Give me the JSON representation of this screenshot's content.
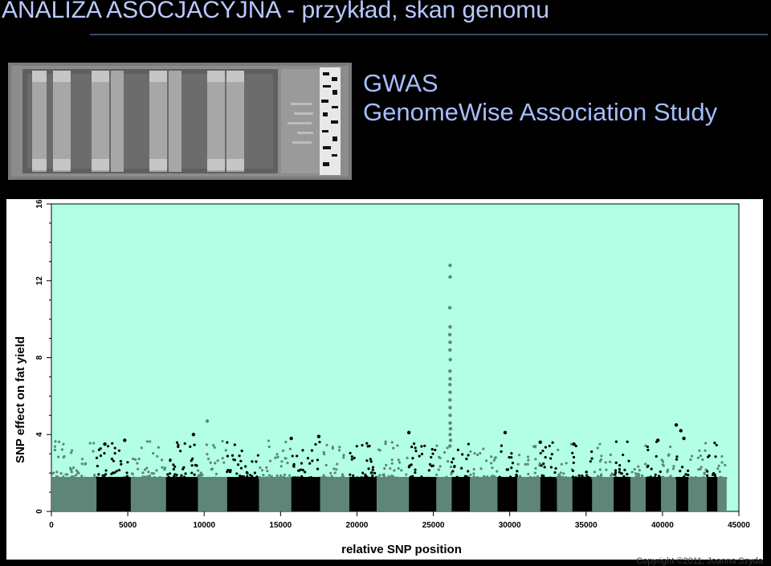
{
  "slide": {
    "title": "ANALIZA ASOCJACYJNA - przykład, skan genomu",
    "gwas_label": "GWAS",
    "gwas_full": "GenomeWise Association Study",
    "copyright": "Copyright ©2011, Joanna Szyda"
  },
  "colors": {
    "background": "#000000",
    "title": "#b9c8ff",
    "plot_bg": "#b3ffe6",
    "odd_chrom": "#5e8578",
    "even_chrom": "#000000"
  },
  "icons": [
    "gel-electrophoresis-image"
  ],
  "chart_data": {
    "type": "scatter",
    "title": "",
    "xlabel": "relative SNP position",
    "ylabel": "SNP effect on fat yield",
    "xlim": [
      0,
      45000
    ],
    "ylim": [
      0,
      16
    ],
    "xticks": [
      0,
      5000,
      10000,
      15000,
      20000,
      25000,
      30000,
      35000,
      40000,
      45000
    ],
    "yticks": [
      0,
      4,
      8,
      12,
      16
    ],
    "grid": false,
    "legend": "none",
    "chromosome_bands": [
      {
        "start": 0,
        "end": 2950,
        "color": "green"
      },
      {
        "start": 2950,
        "end": 5200,
        "color": "black"
      },
      {
        "start": 5200,
        "end": 7500,
        "color": "green"
      },
      {
        "start": 7500,
        "end": 9600,
        "color": "black"
      },
      {
        "start": 9600,
        "end": 11500,
        "color": "green"
      },
      {
        "start": 11500,
        "end": 13600,
        "color": "black"
      },
      {
        "start": 13600,
        "end": 15700,
        "color": "green"
      },
      {
        "start": 15700,
        "end": 17600,
        "color": "black"
      },
      {
        "start": 17600,
        "end": 19500,
        "color": "green"
      },
      {
        "start": 19500,
        "end": 21300,
        "color": "black"
      },
      {
        "start": 21300,
        "end": 23400,
        "color": "green"
      },
      {
        "start": 23400,
        "end": 25200,
        "color": "black"
      },
      {
        "start": 25200,
        "end": 26200,
        "color": "green"
      },
      {
        "start": 26200,
        "end": 27400,
        "color": "black"
      },
      {
        "start": 27400,
        "end": 29200,
        "color": "green"
      },
      {
        "start": 29200,
        "end": 30500,
        "color": "black"
      },
      {
        "start": 30500,
        "end": 32000,
        "color": "green"
      },
      {
        "start": 32000,
        "end": 33100,
        "color": "black"
      },
      {
        "start": 33100,
        "end": 34100,
        "color": "green"
      },
      {
        "start": 34100,
        "end": 35400,
        "color": "black"
      },
      {
        "start": 35400,
        "end": 36800,
        "color": "green"
      },
      {
        "start": 36800,
        "end": 37900,
        "color": "black"
      },
      {
        "start": 37900,
        "end": 38900,
        "color": "green"
      },
      {
        "start": 38900,
        "end": 39900,
        "color": "black"
      },
      {
        "start": 39900,
        "end": 40900,
        "color": "green"
      },
      {
        "start": 40900,
        "end": 41700,
        "color": "black"
      },
      {
        "start": 41700,
        "end": 42900,
        "color": "green"
      },
      {
        "start": 42900,
        "end": 43600,
        "color": "black"
      },
      {
        "start": 43600,
        "end": 44200,
        "color": "green"
      }
    ],
    "baseline_max": 2.3,
    "highlight_points": [
      {
        "x": 26100,
        "y": 12.8
      },
      {
        "x": 26100,
        "y": 12.2
      },
      {
        "x": 26080,
        "y": 10.6
      },
      {
        "x": 26100,
        "y": 9.6
      },
      {
        "x": 26080,
        "y": 9.2
      },
      {
        "x": 26100,
        "y": 8.8
      },
      {
        "x": 26090,
        "y": 8.4
      },
      {
        "x": 26110,
        "y": 7.9
      },
      {
        "x": 26090,
        "y": 7.3
      },
      {
        "x": 26100,
        "y": 6.9
      },
      {
        "x": 26090,
        "y": 6.6
      },
      {
        "x": 26100,
        "y": 6.2
      },
      {
        "x": 26090,
        "y": 5.8
      },
      {
        "x": 26100,
        "y": 5.4
      },
      {
        "x": 26100,
        "y": 5.0
      },
      {
        "x": 26100,
        "y": 4.6
      },
      {
        "x": 26120,
        "y": 4.3
      },
      {
        "x": 26100,
        "y": 4.0
      },
      {
        "x": 26130,
        "y": 3.7
      },
      {
        "x": 26090,
        "y": 3.4
      },
      {
        "x": 40900,
        "y": 4.5
      },
      {
        "x": 41200,
        "y": 4.2
      },
      {
        "x": 41400,
        "y": 3.8
      },
      {
        "x": 10200,
        "y": 4.7
      },
      {
        "x": 9300,
        "y": 4.0
      },
      {
        "x": 23400,
        "y": 4.1
      },
      {
        "x": 17500,
        "y": 3.9
      },
      {
        "x": 15700,
        "y": 3.8
      },
      {
        "x": 29700,
        "y": 4.1
      },
      {
        "x": 4800,
        "y": 3.7
      },
      {
        "x": 34200,
        "y": 3.5
      },
      {
        "x": 32000,
        "y": 3.6
      },
      {
        "x": 3500,
        "y": 3.5
      },
      {
        "x": 39700,
        "y": 3.7
      }
    ]
  }
}
